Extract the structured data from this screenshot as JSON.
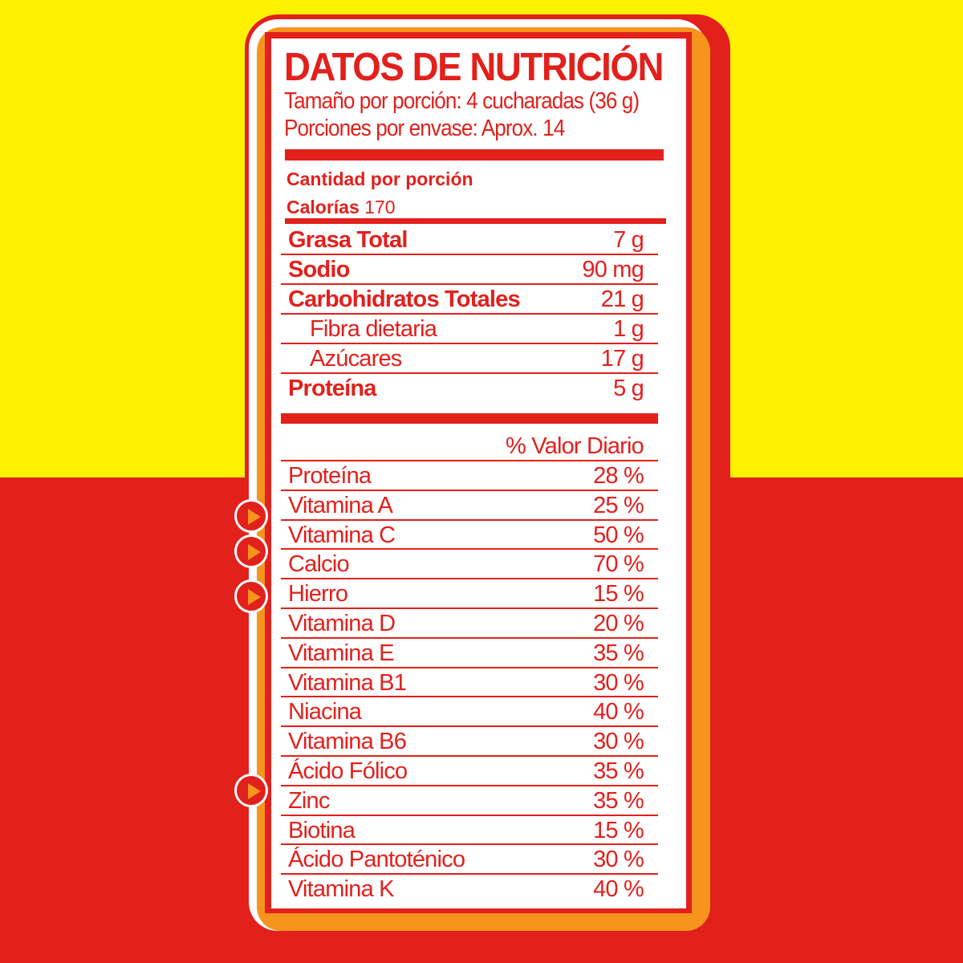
{
  "colors": {
    "yellow": "#fef200",
    "red": "#e2201c",
    "orange": "#f7941d",
    "white": "#ffffff"
  },
  "label": {
    "title": "DATOS DE NUTRICIÓN",
    "serving_size": "Tamaño por porción: 4 cucharadas (36 g)",
    "servings_per_container": "Porciones por envase: Aprox. 14",
    "amount_per_serving": "Cantidad por porción",
    "calories_label": "Calorías",
    "calories_value": "170",
    "nutrients": [
      {
        "name": "Grasa Total",
        "value": "7 g"
      },
      {
        "name": "Sodio",
        "value": "90 mg"
      },
      {
        "name": "Carbohidratos Totales",
        "value": "21 g"
      },
      {
        "name": "Fibra dietaria",
        "value": "1 g"
      },
      {
        "name": "Azúcares",
        "value": "17 g"
      },
      {
        "name": "Proteína",
        "value": "5 g"
      }
    ],
    "dv_header": "% Valor Diario",
    "daily_values": [
      {
        "name": "Proteína",
        "value": "28 %"
      },
      {
        "name": "Vitamina A",
        "value": "25 %"
      },
      {
        "name": "Vitamina C",
        "value": "50 %"
      },
      {
        "name": "Calcio",
        "value": "70 %"
      },
      {
        "name": "Hierro",
        "value": "15 %"
      },
      {
        "name": "Vitamina D",
        "value": "20 %"
      },
      {
        "name": "Vitamina E",
        "value": "35 %"
      },
      {
        "name": "Vitamina B1",
        "value": "30 %"
      },
      {
        "name": "Niacina",
        "value": "40 %"
      },
      {
        "name": "Vitamina B6",
        "value": "30 %"
      },
      {
        "name": "Ácido Fólico",
        "value": "35 %"
      },
      {
        "name": "Zinc",
        "value": "35 %"
      },
      {
        "name": "Biotina",
        "value": "15 %"
      },
      {
        "name": "Ácido Pantoténico",
        "value": "30 %"
      },
      {
        "name": "Vitamina K",
        "value": "40 %"
      }
    ]
  },
  "markers": {
    "icon": "play-arrow-icon",
    "count": 4
  }
}
